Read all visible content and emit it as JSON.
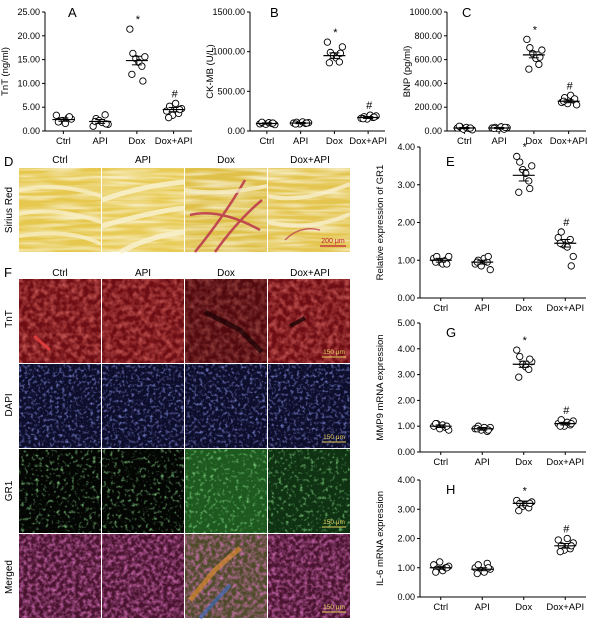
{
  "colors": {
    "sirius_bg": "#e3c64c",
    "sirius_red": "#b8324a",
    "tnt_bg": "#6e0e14",
    "tnt_red": "#d9302a",
    "dapi_bg": "#0f1032",
    "dapi_blue": "#3a44b8",
    "gr1_bg": "#050805",
    "gr1_green": "#3fbf3a",
    "merged_bg": "#4a1a3a"
  },
  "panels": {
    "D": {
      "letter": "D",
      "row_label": "Sirius Red",
      "columns": [
        "Ctrl",
        "API",
        "Dox",
        "Dox+API"
      ],
      "scale_bar": "200 μm"
    },
    "F": {
      "letter": "F",
      "columns": [
        "Ctrl",
        "API",
        "Dox",
        "Dox+API"
      ],
      "rows": [
        "TnT",
        "DAPI",
        "GR1",
        "Merged"
      ],
      "scale_bar": "150 μm"
    }
  },
  "chart_data": [
    {
      "id": "A",
      "letter": "A",
      "type": "scatter",
      "categories": [
        "Ctrl",
        "API",
        "Dox",
        "Dox+API"
      ],
      "ylabel": "TnT (ng/ml)",
      "ylim": [
        0,
        25
      ],
      "yticks": [
        "0.00",
        "5.00",
        "10.00",
        "15.00",
        "20.00",
        "25.00"
      ],
      "means": [
        2.4,
        2.0,
        14.8,
        4.5
      ],
      "sem": [
        0.35,
        0.4,
        0.9,
        0.45
      ],
      "points": [
        [
          3.3,
          2.0,
          2.2,
          1.6,
          2.8,
          2.5,
          1.9,
          3.0
        ],
        [
          1.0,
          2.6,
          2.2,
          1.8,
          3.4,
          1.4,
          2.0,
          1.5
        ],
        [
          21.4,
          16.3,
          15.2,
          14.4,
          13.6,
          15.6,
          11.9,
          10.5
        ],
        [
          4.2,
          5.2,
          3.3,
          5.8,
          3.7,
          4.7,
          2.8,
          4.5
        ]
      ],
      "significance": [
        "",
        "",
        "*",
        "#"
      ]
    },
    {
      "id": "B",
      "letter": "B",
      "type": "scatter",
      "categories": [
        "Ctrl",
        "API",
        "Dox",
        "Dox+API"
      ],
      "ylabel": "CK-MB (U/L)",
      "ylim": [
        0,
        1500
      ],
      "yticks": [
        "0.00",
        "500.00",
        "1000.00",
        "1500.00"
      ],
      "means": [
        95,
        100,
        950,
        170
      ],
      "sem": [
        8,
        8,
        35,
        12
      ],
      "points": [
        [
          90,
          100,
          85,
          105,
          95,
          80,
          110,
          100
        ],
        [
          100,
          110,
          90,
          115,
          95,
          105,
          88,
          100
        ],
        [
          1120,
          990,
          950,
          920,
          870,
          1060,
          860,
          980
        ],
        [
          160,
          180,
          150,
          200,
          170,
          190,
          155,
          175
        ]
      ],
      "significance": [
        "",
        "",
        "*",
        "#"
      ]
    },
    {
      "id": "C",
      "letter": "C",
      "type": "scatter",
      "categories": [
        "Ctrl",
        "API",
        "Dox",
        "Dox+API"
      ],
      "ylabel": "BNP (pg/ml)",
      "ylim": [
        0,
        1000
      ],
      "yticks": [
        "0.00",
        "200.00",
        "400.00",
        "600.00",
        "800.00",
        "1000.00"
      ],
      "means": [
        25,
        25,
        640,
        250
      ],
      "sem": [
        5,
        5,
        25,
        12
      ],
      "points": [
        [
          25,
          35,
          15,
          30,
          20,
          10,
          40,
          25
        ],
        [
          25,
          30,
          20,
          35,
          15,
          28,
          22,
          30
        ],
        [
          770,
          700,
          650,
          610,
          560,
          680,
          520,
          620
        ],
        [
          240,
          280,
          230,
          300,
          260,
          220,
          250,
          270
        ]
      ],
      "significance": [
        "",
        "",
        "*",
        "#"
      ]
    },
    {
      "id": "E",
      "letter": "E",
      "type": "scatter",
      "categories": [
        "Ctrl",
        "API",
        "Dox",
        "Dox+API"
      ],
      "ylabel": "Relative expression of GR1",
      "ylim": [
        0,
        4
      ],
      "yticks": [
        "0.00",
        "1.00",
        "2.00",
        "3.00",
        "4.00"
      ],
      "means": [
        1.0,
        0.95,
        3.25,
        1.45
      ],
      "sem": [
        0.05,
        0.05,
        0.15,
        0.1
      ],
      "points": [
        [
          1.05,
          1.1,
          0.95,
          0.9,
          1.0,
          1.1,
          0.95,
          0.9
        ],
        [
          0.9,
          1.0,
          0.85,
          1.05,
          0.95,
          0.75,
          0.95,
          1.1
        ],
        [
          3.75,
          3.6,
          3.4,
          3.3,
          3.1,
          3.5,
          2.8,
          2.9
        ],
        [
          1.6,
          1.75,
          1.4,
          1.35,
          1.55,
          1.1,
          1.45,
          0.85
        ]
      ],
      "significance": [
        "",
        "",
        "*",
        "#"
      ]
    },
    {
      "id": "G",
      "letter": "G",
      "type": "scatter",
      "categories": [
        "Ctrl",
        "API",
        "Dox",
        "Dox+API"
      ],
      "ylabel": "MMP9 mRNA expression",
      "ylim": [
        0,
        5
      ],
      "yticks": [
        "0.00",
        "1.00",
        "2.00",
        "3.00",
        "4.00",
        "5.00"
      ],
      "means": [
        1.0,
        0.9,
        3.4,
        1.1
      ],
      "sem": [
        0.05,
        0.05,
        0.12,
        0.05
      ],
      "points": [
        [
          1.0,
          1.1,
          0.9,
          1.05,
          0.95,
          0.85,
          1.1,
          1.0
        ],
        [
          0.9,
          1.0,
          0.85,
          0.95,
          0.8,
          0.95,
          0.9,
          0.85
        ],
        [
          3.95,
          3.7,
          3.4,
          3.3,
          3.2,
          3.5,
          2.9,
          3.6
        ],
        [
          1.1,
          1.25,
          1.0,
          1.15,
          1.05,
          1.2,
          1.0,
          1.1
        ]
      ],
      "significance": [
        "",
        "",
        "*",
        "#"
      ]
    },
    {
      "id": "H",
      "letter": "H",
      "type": "scatter",
      "categories": [
        "Ctrl",
        "API",
        "Dox",
        "Dox+API"
      ],
      "ylabel": "IL-6 mRNA expression",
      "ylim": [
        0,
        4
      ],
      "yticks": [
        "0.00",
        "1.00",
        "2.00",
        "3.00",
        "4.00"
      ],
      "means": [
        1.0,
        0.95,
        3.2,
        1.75
      ],
      "sem": [
        0.05,
        0.05,
        0.08,
        0.08
      ],
      "points": [
        [
          1.1,
          0.95,
          1.2,
          0.9,
          1.0,
          1.05,
          0.85,
          1.0
        ],
        [
          1.0,
          1.1,
          0.9,
          0.85,
          1.15,
          0.95,
          0.8,
          1.0
        ],
        [
          3.3,
          3.2,
          3.1,
          3.15,
          3.05,
          3.25,
          2.95,
          3.2
        ],
        [
          1.95,
          1.75,
          1.6,
          2.0,
          1.65,
          1.85,
          1.55,
          1.75
        ]
      ],
      "significance": [
        "",
        "",
        "*",
        "#"
      ]
    }
  ]
}
